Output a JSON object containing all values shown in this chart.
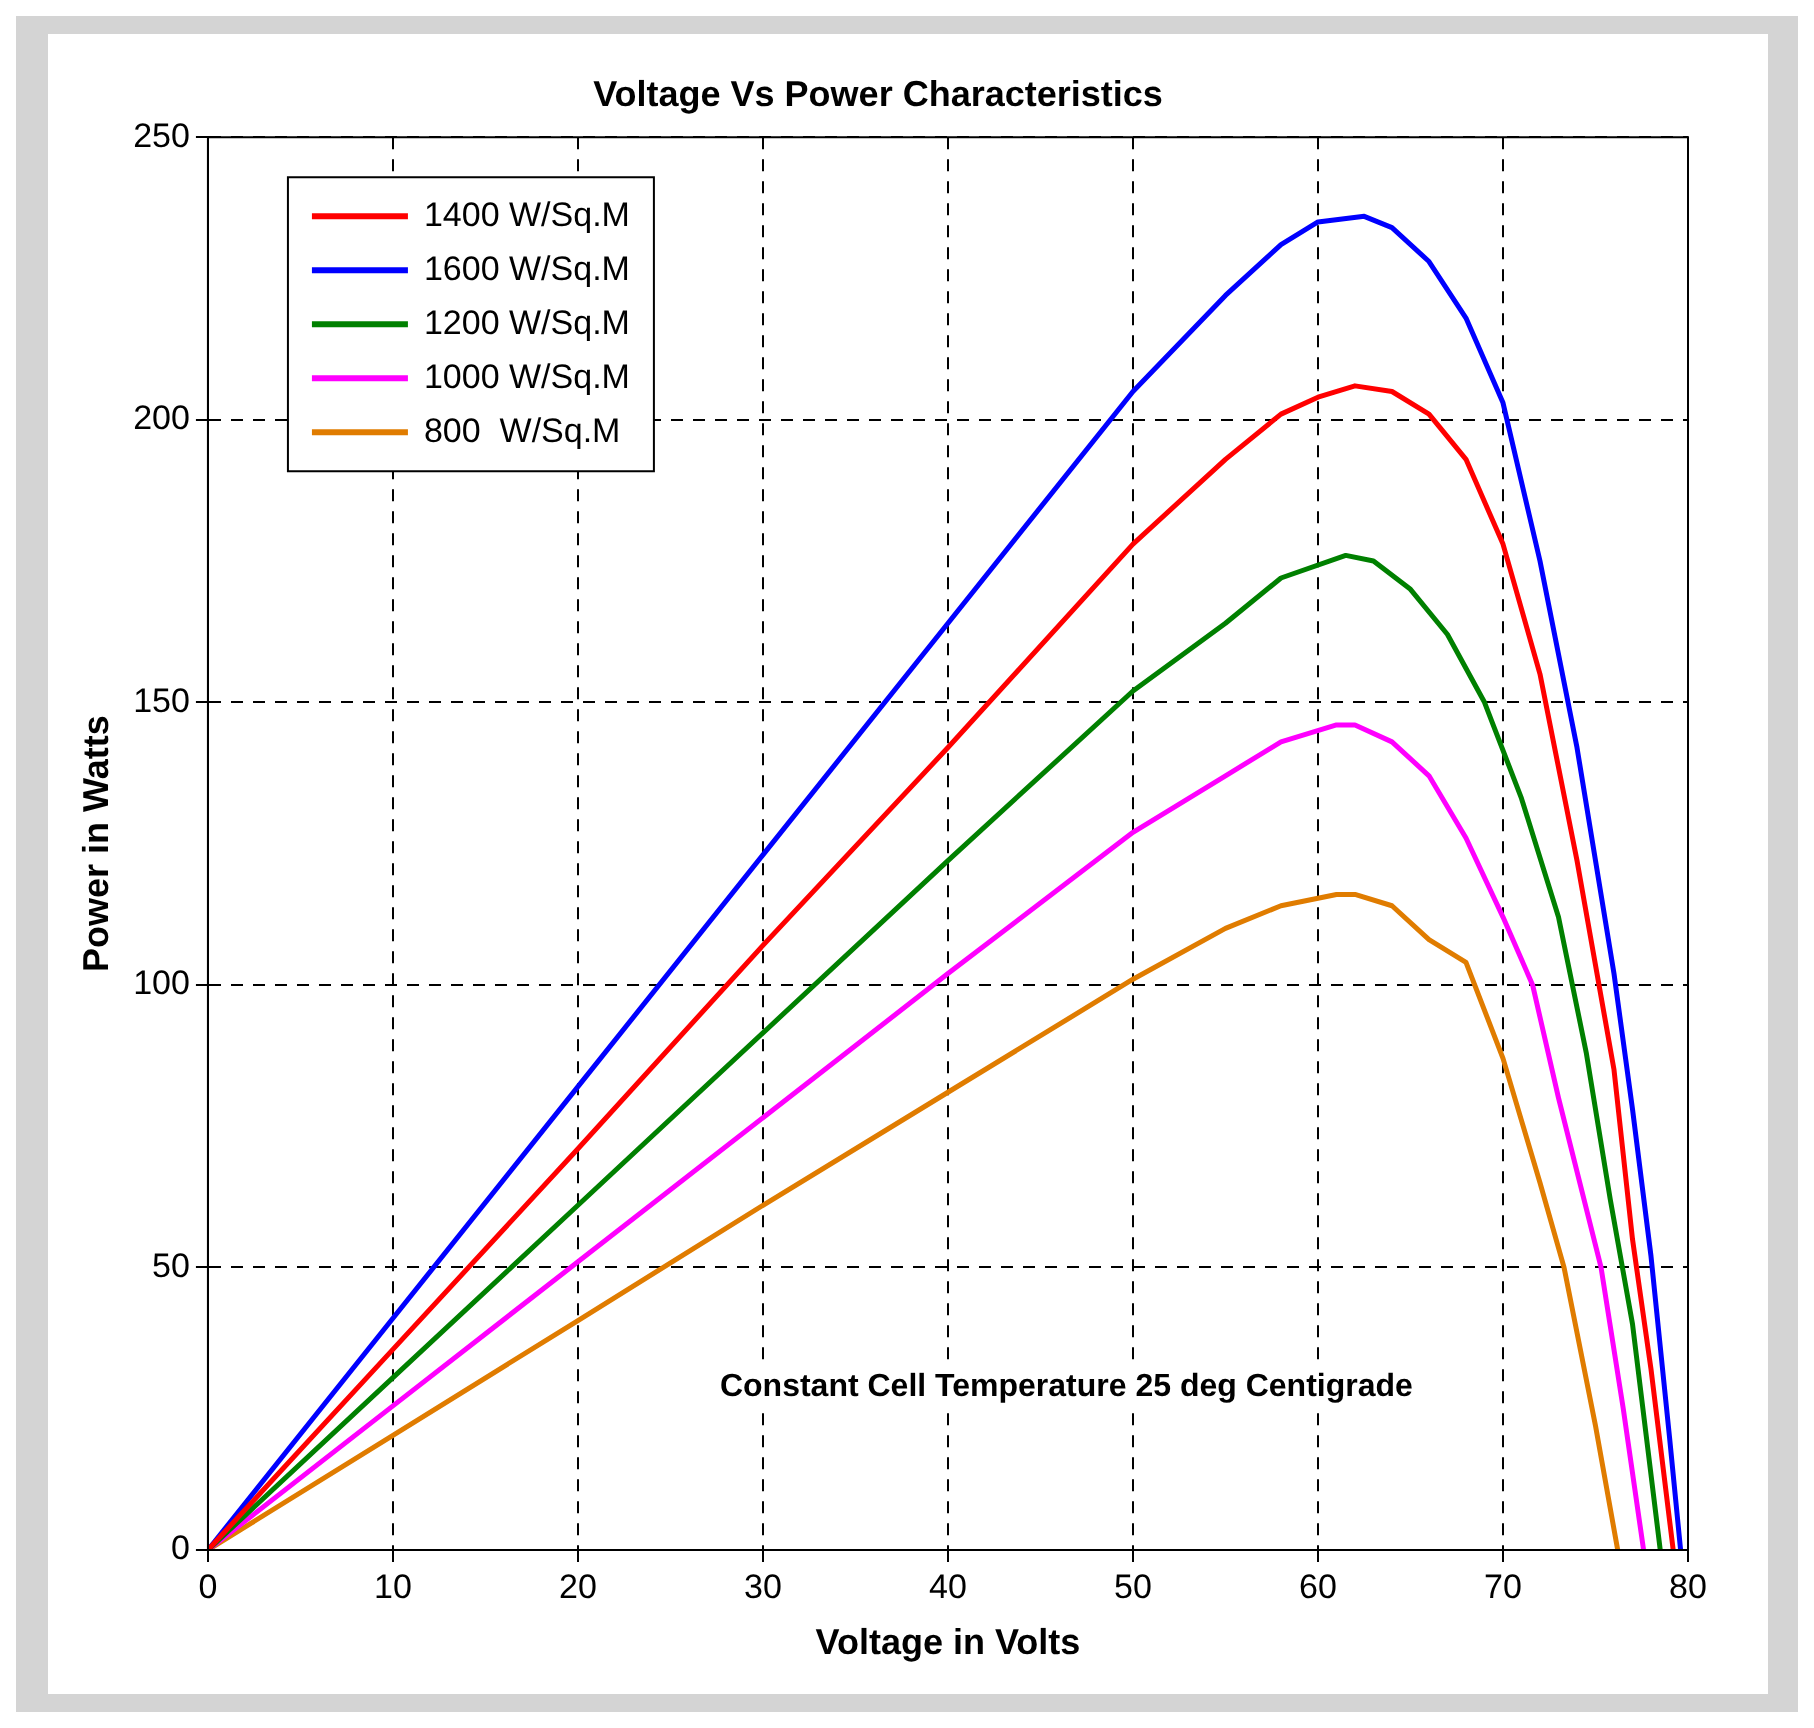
{
  "chart_data": {
    "type": "line",
    "title": "Voltage Vs Power Characteristics",
    "xlabel": "Voltage in Volts",
    "ylabel": "Power in Watts",
    "annotations": [
      "Constant Cell Temperature 25 deg Centigrade"
    ],
    "xlim": [
      0,
      80
    ],
    "ylim": [
      0,
      250
    ],
    "xticks": [
      0,
      10,
      20,
      30,
      40,
      50,
      60,
      70,
      80
    ],
    "yticks": [
      0,
      50,
      100,
      150,
      200,
      250
    ],
    "grid": true,
    "legend": "top left",
    "marker": "none",
    "line_style": "solid",
    "series": [
      {
        "name": "1400 W/Sq.M",
        "color": "#ff0000",
        "x": [
          0,
          10,
          20,
          30,
          40,
          50,
          55,
          58,
          60,
          62,
          64,
          66,
          68,
          70,
          72,
          74,
          76,
          77,
          78,
          79.2
        ],
        "values": [
          0,
          35.5,
          71,
          107,
          142,
          178,
          193,
          201,
          204,
          206,
          205,
          201,
          193,
          178,
          155,
          122,
          85,
          55,
          32,
          0
        ]
      },
      {
        "name": "1600 W/Sq.M",
        "color": "#0000ff",
        "x": [
          0,
          10,
          20,
          30,
          40,
          50,
          55,
          58,
          60,
          62.5,
          64,
          66,
          68,
          70,
          72,
          74,
          76,
          77,
          78,
          79,
          79.6
        ],
        "values": [
          0,
          41,
          82,
          123,
          164,
          205,
          222,
          231,
          235,
          236,
          234,
          228,
          218,
          203,
          175,
          142,
          102,
          78,
          52,
          20,
          0
        ]
      },
      {
        "name": "1200 W/Sq.M",
        "color": "#008000",
        "x": [
          0,
          10,
          20,
          30,
          40,
          50,
          55,
          58,
          61.5,
          63,
          65,
          67,
          69,
          71,
          73,
          74.5,
          75.8,
          77,
          78.5
        ],
        "values": [
          0,
          30.5,
          61,
          91.5,
          122,
          152,
          164,
          172,
          176,
          175,
          170,
          162,
          150,
          133,
          112,
          88,
          62,
          40,
          0
        ]
      },
      {
        "name": "1000 W/Sq.M",
        "color": "#ff00ff",
        "x": [
          0,
          10,
          20,
          30,
          40,
          50,
          55,
          58,
          61,
          62,
          64,
          66,
          68,
          70,
          71.6,
          73,
          75.3,
          76.5,
          77.6
        ],
        "values": [
          0,
          25.5,
          51,
          76.5,
          102,
          127,
          137,
          143,
          146,
          146,
          143,
          137,
          126,
          112,
          100,
          80,
          50,
          25,
          0
        ]
      },
      {
        "name": "800  W/Sq.M",
        "color": "#e07c00",
        "x": [
          0,
          10,
          20,
          30,
          40,
          50,
          55,
          58,
          61,
          62,
          64,
          66,
          68,
          70,
          72,
          73.3,
          75,
          76.2
        ],
        "values": [
          0,
          20.3,
          40.6,
          61,
          81,
          101,
          110,
          114,
          116,
          116,
          114,
          108,
          104,
          87,
          65,
          50,
          22,
          0
        ]
      }
    ]
  }
}
